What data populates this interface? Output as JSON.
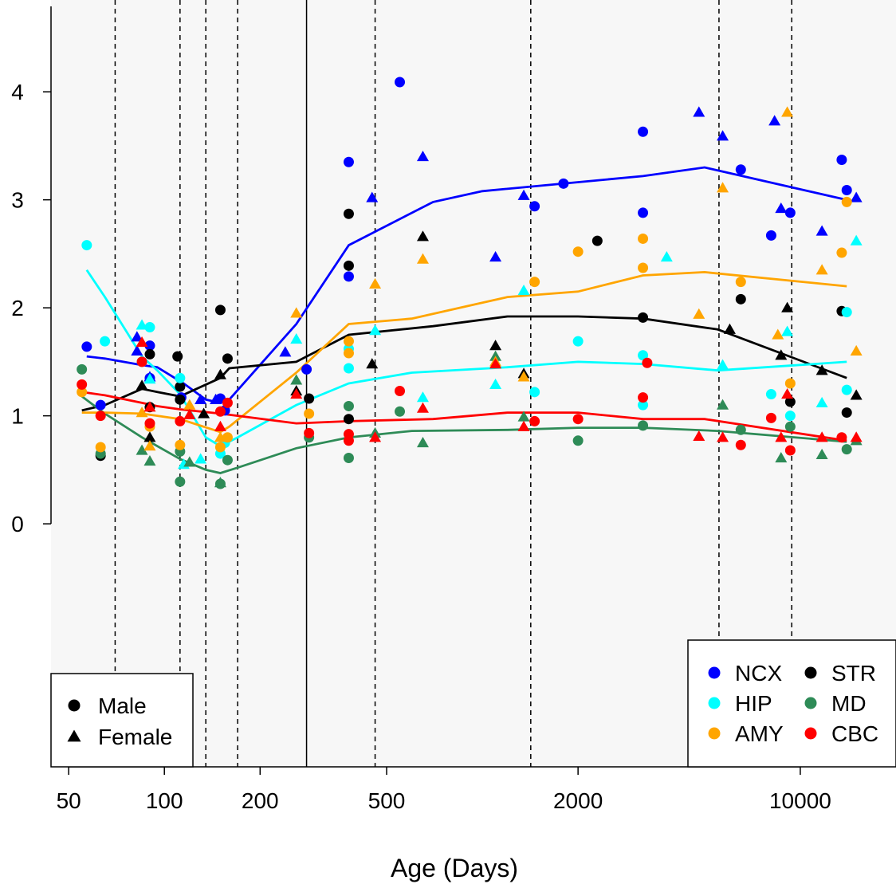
{
  "chart_data": {
    "type": "scatter",
    "title": "",
    "xlabel": "Age (Days)",
    "ylabel": "",
    "x_scale": "log",
    "xlim": [
      44,
      20000
    ],
    "ylim": [
      -2.25,
      4.85
    ],
    "x_ticks": [
      50,
      100,
      200,
      500,
      2000,
      10000
    ],
    "x_tick_labels": [
      "50",
      "100",
      "200",
      "500",
      "2000",
      "10000"
    ],
    "y_ticks": [
      0,
      1,
      2,
      3,
      4
    ],
    "y_tick_labels": [
      "0",
      "1",
      "2",
      "3",
      "4"
    ],
    "background_shading_after_x": 280,
    "vertical_lines": [
      {
        "x": 70,
        "style": "dashed"
      },
      {
        "x": 112,
        "style": "dashed"
      },
      {
        "x": 135,
        "style": "dashed"
      },
      {
        "x": 170,
        "style": "dashed"
      },
      {
        "x": 280,
        "style": "solid"
      },
      {
        "x": 460,
        "style": "dashed"
      },
      {
        "x": 1420,
        "style": "dashed"
      },
      {
        "x": 5550,
        "style": "dashed"
      },
      {
        "x": 9400,
        "style": "dashed"
      }
    ],
    "sex_legend": {
      "position": "bottom-left",
      "entries": [
        {
          "label": "Male",
          "shape": "circle"
        },
        {
          "label": "Female",
          "shape": "triangle"
        }
      ]
    },
    "region_legend": {
      "position": "bottom-right",
      "entries": [
        {
          "label": "NCX",
          "color": "#0000FF"
        },
        {
          "label": "STR",
          "color": "#000000"
        },
        {
          "label": "HIP",
          "color": "#00FFFF"
        },
        {
          "label": "MD",
          "color": "#2E8B57"
        },
        {
          "label": "AMY",
          "color": "#FFA500"
        },
        {
          "label": "CBC",
          "color": "#FF0000"
        }
      ]
    },
    "series": [
      {
        "name": "NCX",
        "color": "#0000FF",
        "trend": [
          [
            57,
            1.55
          ],
          [
            65,
            1.53
          ],
          [
            85,
            1.47
          ],
          [
            95,
            1.45
          ],
          [
            115,
            1.3
          ],
          [
            135,
            1.15
          ],
          [
            150,
            1.12
          ],
          [
            160,
            1.15
          ],
          [
            260,
            1.85
          ],
          [
            380,
            2.58
          ],
          [
            700,
            2.98
          ],
          [
            1000,
            3.08
          ],
          [
            3200,
            3.22
          ],
          [
            5000,
            3.3
          ],
          [
            14000,
            3.0
          ]
        ],
        "male": [
          [
            57,
            1.64
          ],
          [
            63,
            1.1
          ],
          [
            90,
            1.65
          ],
          [
            90,
            1.35
          ],
          [
            113,
            1.17
          ],
          [
            150,
            1.16
          ],
          [
            155,
            1.05
          ],
          [
            280,
            1.43
          ],
          [
            380,
            3.35
          ],
          [
            380,
            2.29
          ],
          [
            550,
            4.09
          ],
          [
            1460,
            2.94
          ],
          [
            1800,
            3.15
          ],
          [
            3200,
            3.63
          ],
          [
            3200,
            2.88
          ],
          [
            6500,
            3.28
          ],
          [
            8100,
            2.67
          ],
          [
            9300,
            2.88
          ],
          [
            13500,
            3.37
          ],
          [
            14000,
            3.09
          ]
        ],
        "female": [
          [
            82,
            1.73
          ],
          [
            82,
            1.6
          ],
          [
            90,
            1.36
          ],
          [
            130,
            1.15
          ],
          [
            145,
            1.15
          ],
          [
            240,
            1.59
          ],
          [
            450,
            3.02
          ],
          [
            650,
            3.4
          ],
          [
            1100,
            2.47
          ],
          [
            1350,
            3.04
          ],
          [
            4800,
            3.81
          ],
          [
            5700,
            3.59
          ],
          [
            8300,
            3.73
          ],
          [
            8700,
            2.92
          ],
          [
            11700,
            2.71
          ],
          [
            15000,
            3.02
          ]
        ]
      },
      {
        "name": "STR",
        "color": "#000000",
        "trend": [
          [
            55,
            1.05
          ],
          [
            65,
            1.1
          ],
          [
            85,
            1.25
          ],
          [
            95,
            1.22
          ],
          [
            112,
            1.18
          ],
          [
            150,
            1.35
          ],
          [
            160,
            1.44
          ],
          [
            260,
            1.5
          ],
          [
            380,
            1.75
          ],
          [
            700,
            1.83
          ],
          [
            1200,
            1.92
          ],
          [
            2000,
            1.92
          ],
          [
            3200,
            1.9
          ],
          [
            5500,
            1.8
          ],
          [
            14000,
            1.35
          ]
        ],
        "male": [
          [
            63,
            0.63
          ],
          [
            90,
            1.57
          ],
          [
            90,
            1.08
          ],
          [
            110,
            1.55
          ],
          [
            112,
            1.27
          ],
          [
            112,
            1.15
          ],
          [
            150,
            1.98
          ],
          [
            158,
            1.53
          ],
          [
            285,
            1.16
          ],
          [
            380,
            2.87
          ],
          [
            380,
            2.39
          ],
          [
            380,
            0.97
          ],
          [
            2300,
            2.62
          ],
          [
            3200,
            1.91
          ],
          [
            6500,
            2.08
          ],
          [
            9300,
            1.13
          ],
          [
            13500,
            1.97
          ],
          [
            14000,
            1.03
          ]
        ],
        "female": [
          [
            85,
            1.28
          ],
          [
            90,
            0.8
          ],
          [
            133,
            1.02
          ],
          [
            150,
            1.38
          ],
          [
            260,
            1.23
          ],
          [
            450,
            1.48
          ],
          [
            650,
            2.66
          ],
          [
            1100,
            1.65
          ],
          [
            1350,
            1.39
          ],
          [
            6000,
            1.8
          ],
          [
            8700,
            1.56
          ],
          [
            9100,
            2.0
          ],
          [
            11700,
            1.42
          ],
          [
            15000,
            1.19
          ]
        ]
      },
      {
        "name": "HIP",
        "color": "#00FFFF",
        "trend": [
          [
            57,
            2.35
          ],
          [
            65,
            2.1
          ],
          [
            85,
            1.55
          ],
          [
            95,
            1.42
          ],
          [
            112,
            1.2
          ],
          [
            135,
            0.8
          ],
          [
            150,
            0.72
          ],
          [
            170,
            0.8
          ],
          [
            260,
            1.1
          ],
          [
            380,
            1.3
          ],
          [
            600,
            1.4
          ],
          [
            1200,
            1.45
          ],
          [
            2000,
            1.5
          ],
          [
            3200,
            1.48
          ],
          [
            5500,
            1.42
          ],
          [
            14000,
            1.5
          ]
        ],
        "male": [
          [
            57,
            2.58
          ],
          [
            65,
            1.69
          ],
          [
            85,
            1.5
          ],
          [
            90,
            1.82
          ],
          [
            112,
            1.35
          ],
          [
            150,
            0.65
          ],
          [
            155,
            0.75
          ],
          [
            380,
            1.44
          ],
          [
            380,
            1.62
          ],
          [
            1460,
            1.22
          ],
          [
            2000,
            1.69
          ],
          [
            3200,
            1.56
          ],
          [
            3200,
            1.1
          ],
          [
            8100,
            1.2
          ],
          [
            9300,
            1.0
          ],
          [
            14000,
            1.96
          ],
          [
            14000,
            1.24
          ]
        ],
        "female": [
          [
            85,
            1.84
          ],
          [
            90,
            1.34
          ],
          [
            115,
            0.55
          ],
          [
            130,
            0.6
          ],
          [
            260,
            1.71
          ],
          [
            460,
            1.79
          ],
          [
            650,
            1.17
          ],
          [
            1100,
            1.29
          ],
          [
            1350,
            2.16
          ],
          [
            3800,
            2.47
          ],
          [
            5700,
            1.47
          ],
          [
            9100,
            1.78
          ],
          [
            11700,
            1.12
          ],
          [
            15000,
            2.62
          ]
        ]
      },
      {
        "name": "MD",
        "color": "#2E8B57",
        "trend": [
          [
            55,
            1.18
          ],
          [
            65,
            1.02
          ],
          [
            85,
            0.8
          ],
          [
            95,
            0.72
          ],
          [
            112,
            0.6
          ],
          [
            135,
            0.5
          ],
          [
            150,
            0.47
          ],
          [
            170,
            0.52
          ],
          [
            260,
            0.7
          ],
          [
            380,
            0.8
          ],
          [
            600,
            0.86
          ],
          [
            1200,
            0.87
          ],
          [
            2000,
            0.89
          ],
          [
            3200,
            0.89
          ],
          [
            5500,
            0.86
          ],
          [
            14000,
            0.76
          ]
        ],
        "male": [
          [
            55,
            1.43
          ],
          [
            63,
            0.65
          ],
          [
            112,
            0.39
          ],
          [
            112,
            0.67
          ],
          [
            150,
            0.37
          ],
          [
            158,
            0.59
          ],
          [
            285,
            0.8
          ],
          [
            380,
            0.61
          ],
          [
            380,
            1.09
          ],
          [
            550,
            1.04
          ],
          [
            2000,
            0.77
          ],
          [
            3200,
            0.91
          ],
          [
            6500,
            0.87
          ],
          [
            9300,
            0.9
          ],
          [
            14000,
            0.69
          ]
        ],
        "female": [
          [
            85,
            0.68
          ],
          [
            90,
            0.58
          ],
          [
            120,
            0.57
          ],
          [
            150,
            0.38
          ],
          [
            260,
            1.33
          ],
          [
            460,
            0.84
          ],
          [
            650,
            0.75
          ],
          [
            1100,
            1.55
          ],
          [
            1350,
            0.99
          ],
          [
            5700,
            1.1
          ],
          [
            8700,
            0.61
          ],
          [
            11700,
            0.64
          ],
          [
            15000,
            0.77
          ]
        ]
      },
      {
        "name": "AMY",
        "color": "#FFA500",
        "trend": [
          [
            55,
            1.03
          ],
          [
            65,
            1.03
          ],
          [
            85,
            1.02
          ],
          [
            95,
            1.0
          ],
          [
            112,
            0.97
          ],
          [
            150,
            0.85
          ],
          [
            160,
            0.9
          ],
          [
            260,
            1.4
          ],
          [
            380,
            1.85
          ],
          [
            600,
            1.9
          ],
          [
            1200,
            2.1
          ],
          [
            2000,
            2.15
          ],
          [
            3200,
            2.3
          ],
          [
            5000,
            2.33
          ],
          [
            14000,
            2.2
          ]
        ],
        "male": [
          [
            55,
            1.22
          ],
          [
            63,
            0.71
          ],
          [
            90,
            0.9
          ],
          [
            112,
            0.73
          ],
          [
            150,
            0.71
          ],
          [
            158,
            0.8
          ],
          [
            285,
            1.02
          ],
          [
            380,
            1.69
          ],
          [
            380,
            1.58
          ],
          [
            1460,
            2.24
          ],
          [
            2000,
            2.52
          ],
          [
            3200,
            2.64
          ],
          [
            3200,
            2.37
          ],
          [
            6500,
            2.24
          ],
          [
            9300,
            1.3
          ],
          [
            13500,
            2.51
          ],
          [
            14000,
            2.98
          ]
        ],
        "female": [
          [
            85,
            1.03
          ],
          [
            90,
            0.72
          ],
          [
            120,
            1.1
          ],
          [
            150,
            0.8
          ],
          [
            260,
            1.95
          ],
          [
            460,
            2.22
          ],
          [
            650,
            2.45
          ],
          [
            1100,
            1.5
          ],
          [
            1350,
            1.36
          ],
          [
            4800,
            1.94
          ],
          [
            5700,
            3.11
          ],
          [
            8500,
            1.75
          ],
          [
            9100,
            3.81
          ],
          [
            11700,
            2.35
          ],
          [
            15000,
            1.6
          ]
        ]
      },
      {
        "name": "CBC",
        "color": "#FF0000",
        "trend": [
          [
            55,
            1.22
          ],
          [
            65,
            1.19
          ],
          [
            85,
            1.12
          ],
          [
            95,
            1.09
          ],
          [
            112,
            1.06
          ],
          [
            150,
            1.02
          ],
          [
            170,
            1.0
          ],
          [
            260,
            0.93
          ],
          [
            380,
            0.95
          ],
          [
            700,
            0.97
          ],
          [
            1200,
            1.03
          ],
          [
            2000,
            1.03
          ],
          [
            3200,
            0.97
          ],
          [
            5000,
            0.97
          ],
          [
            14000,
            0.77
          ]
        ],
        "male": [
          [
            55,
            1.29
          ],
          [
            63,
            1.0
          ],
          [
            85,
            1.5
          ],
          [
            90,
            0.93
          ],
          [
            112,
            0.95
          ],
          [
            150,
            1.04
          ],
          [
            158,
            1.12
          ],
          [
            285,
            0.84
          ],
          [
            380,
            0.83
          ],
          [
            380,
            0.77
          ],
          [
            550,
            1.23
          ],
          [
            1460,
            0.95
          ],
          [
            2000,
            0.97
          ],
          [
            3200,
            1.17
          ],
          [
            3300,
            1.49
          ],
          [
            6500,
            0.73
          ],
          [
            8100,
            0.98
          ],
          [
            9300,
            0.68
          ],
          [
            13500,
            0.8
          ]
        ],
        "female": [
          [
            85,
            1.68
          ],
          [
            90,
            1.08
          ],
          [
            120,
            1.01
          ],
          [
            150,
            0.9
          ],
          [
            260,
            1.2
          ],
          [
            460,
            0.8
          ],
          [
            650,
            1.07
          ],
          [
            1100,
            1.48
          ],
          [
            1350,
            0.9
          ],
          [
            4800,
            0.81
          ],
          [
            5700,
            0.8
          ],
          [
            8700,
            0.8
          ],
          [
            9100,
            1.2
          ],
          [
            11700,
            0.8
          ],
          [
            15000,
            0.8
          ]
        ]
      }
    ]
  }
}
